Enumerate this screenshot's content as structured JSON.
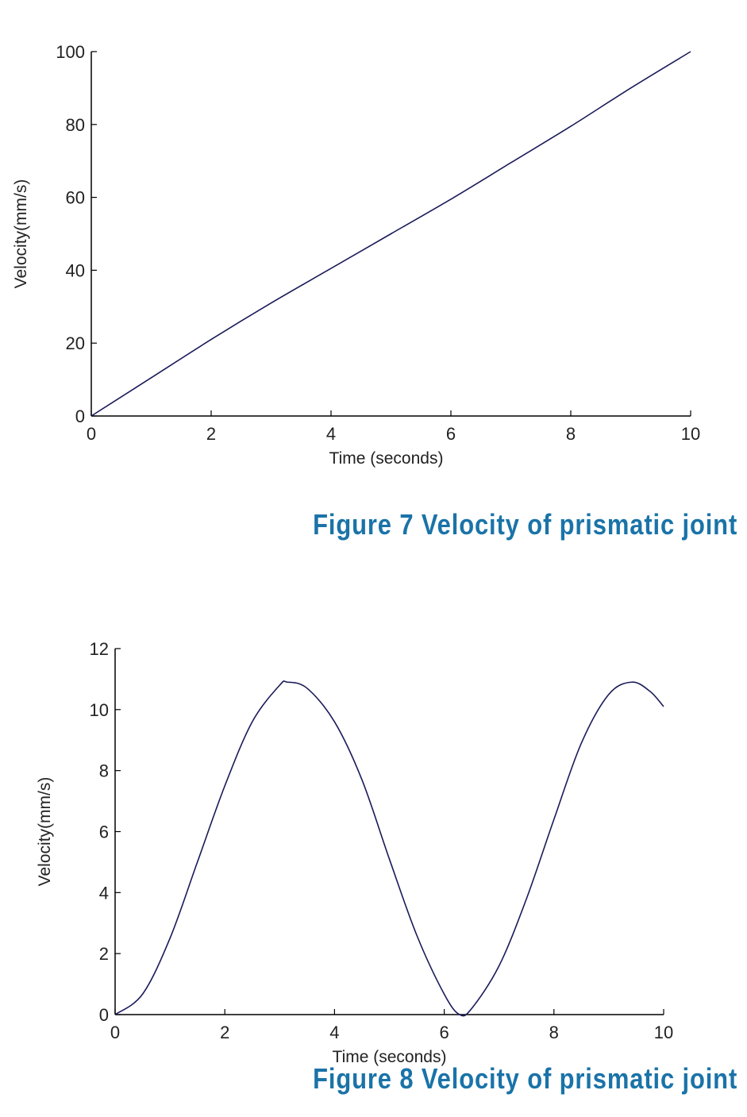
{
  "accent_color": "#1a73a8",
  "line_color": "#1a1a5a",
  "chart_data": [
    {
      "type": "line",
      "xlabel": "Time (seconds)",
      "ylabel": "Velocity(mm/s)",
      "xlim": [
        0,
        10
      ],
      "ylim": [
        0,
        100
      ],
      "xticks": [
        0,
        2,
        4,
        6,
        8,
        10
      ],
      "yticks": [
        0,
        20,
        40,
        60,
        80,
        100
      ],
      "grid": false,
      "caption": "Figure 7  Velocity of  prismatic joint",
      "series": [
        {
          "x": [
            0,
            1,
            2,
            3,
            4,
            5,
            6,
            7,
            8,
            9,
            10
          ],
          "y": [
            0,
            10.5,
            21,
            31,
            40.5,
            50,
            59.5,
            69.5,
            79.5,
            90,
            100
          ]
        }
      ]
    },
    {
      "type": "line",
      "xlabel": "Time (seconds)",
      "ylabel": "Velocity(mm/s)",
      "xlim": [
        0,
        10
      ],
      "ylim": [
        0,
        12
      ],
      "xticks": [
        0,
        2,
        4,
        6,
        8,
        10
      ],
      "yticks": [
        0,
        2,
        4,
        6,
        8,
        10,
        12
      ],
      "grid": false,
      "caption": "Figure 8 Velocity of  prismatic  joint",
      "series": [
        {
          "x": [
            0,
            0.5,
            1,
            1.5,
            2,
            2.5,
            3,
            3.14,
            3.5,
            4,
            4.5,
            5,
            5.5,
            6,
            6.28,
            6.5,
            7,
            7.5,
            8,
            8.5,
            9,
            9.42,
            9.75,
            10
          ],
          "y": [
            0,
            0.67,
            2.5,
            5.0,
            7.5,
            9.6,
            10.8,
            10.9,
            10.7,
            9.6,
            7.7,
            5.1,
            2.6,
            0.67,
            0,
            0.2,
            1.6,
            3.8,
            6.4,
            8.9,
            10.5,
            10.9,
            10.6,
            10.1
          ]
        }
      ]
    }
  ]
}
